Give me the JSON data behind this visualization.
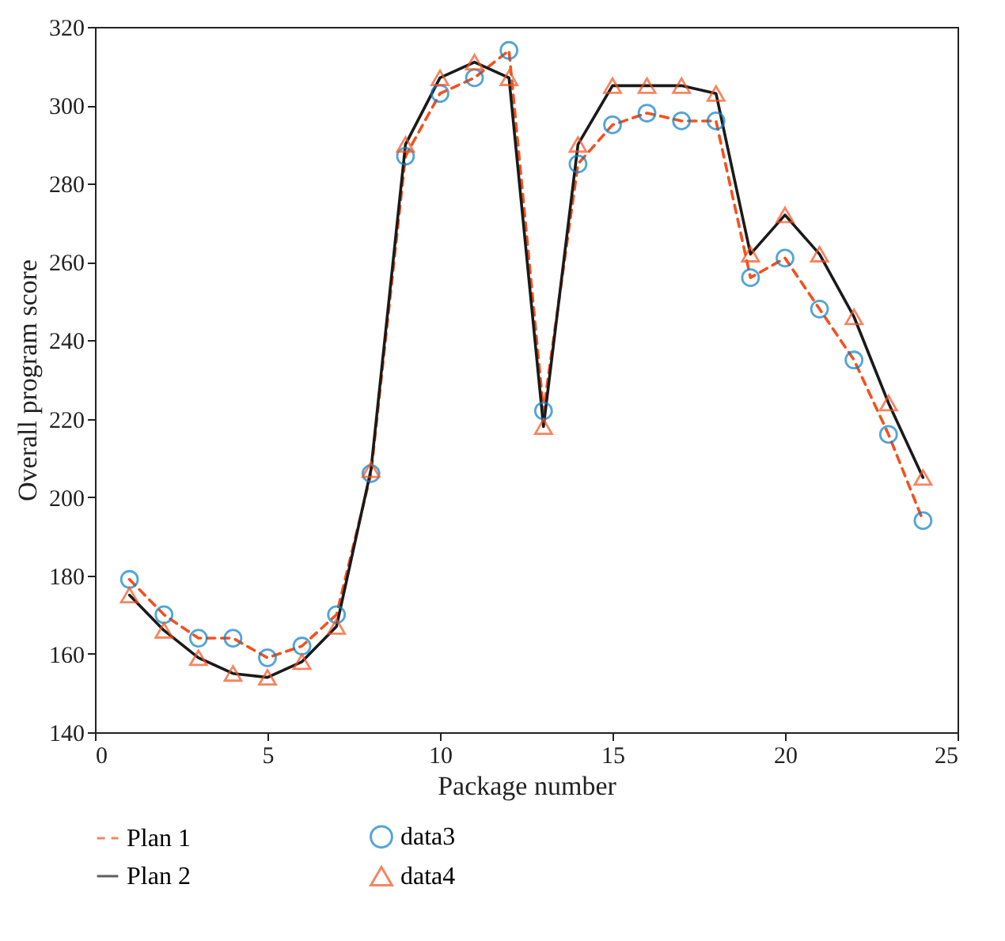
{
  "chart_data": {
    "type": "line",
    "xlabel": "Package number",
    "ylabel": "Overall program score",
    "x": [
      1,
      2,
      3,
      4,
      5,
      6,
      7,
      8,
      9,
      10,
      11,
      12,
      13,
      14,
      15,
      16,
      17,
      18,
      19,
      20,
      21,
      22,
      23,
      24
    ],
    "xlim": [
      0,
      25
    ],
    "xticks": [
      0,
      5,
      10,
      15,
      20,
      25
    ],
    "ylim": [
      140,
      320
    ],
    "yticks": [
      140,
      160,
      180,
      200,
      220,
      240,
      260,
      280,
      300,
      320
    ],
    "grid": false,
    "legend": "bottom",
    "series": [
      {
        "name": "Plan 1",
        "line_style": "dashed",
        "color": "#f4511e",
        "values": [
          179,
          170,
          164,
          164,
          159,
          162,
          170,
          206,
          287,
          303,
          307,
          314,
          222,
          285,
          295,
          298,
          296,
          296,
          256,
          261,
          248,
          235,
          216,
          194
        ]
      },
      {
        "name": "Plan 2",
        "line_style": "solid",
        "color": "#1a1a1a",
        "values": [
          175,
          166,
          159,
          155,
          154,
          158,
          167,
          207,
          290,
          307,
          311,
          307,
          218,
          290,
          305,
          305,
          305,
          303,
          262,
          272,
          262,
          246,
          224,
          205
        ]
      },
      {
        "name": "data3",
        "type": "scatter",
        "marker": "circle",
        "color": "#0b7fc7",
        "values": [
          179,
          170,
          164,
          164,
          159,
          162,
          170,
          206,
          287,
          303,
          307,
          314,
          222,
          285,
          295,
          298,
          296,
          296,
          256,
          261,
          248,
          235,
          216,
          194
        ]
      },
      {
        "name": "data4",
        "type": "scatter",
        "marker": "triangle",
        "color": "#f4511e",
        "values": [
          175,
          166,
          159,
          155,
          154,
          158,
          167,
          207,
          290,
          307,
          311,
          307,
          218,
          290,
          305,
          305,
          305,
          303,
          262,
          272,
          262,
          246,
          224,
          205
        ]
      }
    ]
  }
}
